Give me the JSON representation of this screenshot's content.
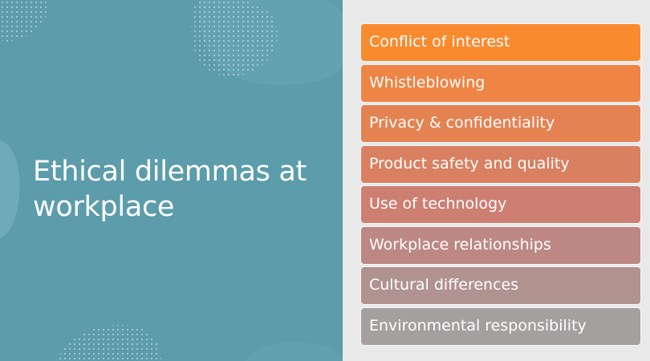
{
  "slide": {
    "title": "Ethical dilemmas at workplace",
    "items": [
      {
        "label": "Conflict of interest",
        "color": "#f98a2e"
      },
      {
        "label": "Whistleblowing",
        "color": "#ee8544"
      },
      {
        "label": "Privacy & confidentiality",
        "color": "#e58252"
      },
      {
        "label": "Product safety and quality",
        "color": "#d98061"
      },
      {
        "label": "Use of technology",
        "color": "#cd7f72"
      },
      {
        "label": "Workplace relationships",
        "color": "#bd8883"
      },
      {
        "label": "Cultural differences",
        "color": "#b0928f"
      },
      {
        "label": "Environmental responsibility",
        "color": "#a4a0a0"
      }
    ]
  }
}
